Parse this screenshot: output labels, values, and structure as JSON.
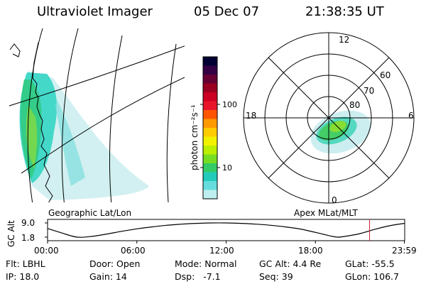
{
  "header": {
    "title": "Ultraviolet Imager",
    "date": "05 Dec 07",
    "time": "21:38:35 UT"
  },
  "colorbar": {
    "label": "photon cm⁻²s⁻¹",
    "ticks": [
      {
        "value": 100,
        "label": "100"
      },
      {
        "value": 10,
        "label": "10"
      }
    ],
    "colors": [
      "#000033",
      "#330044",
      "#660033",
      "#990022",
      "#cc0022",
      "#e8152a",
      "#ff5500",
      "#ff9900",
      "#ffcc00",
      "#f2f200",
      "#bbee00",
      "#77dd22",
      "#33cc66",
      "#22ccbb",
      "#66dddd",
      "#bfeeee"
    ]
  },
  "polar": {
    "hour_labels": [
      "12",
      "18",
      "6",
      "0"
    ],
    "lat_labels": [
      "60",
      "70",
      "80"
    ]
  },
  "panels": {
    "left_label": "Geographic Lat/Lon",
    "right_label": "Apex MLat/MLT"
  },
  "altitude_plot": {
    "ylabel": "GC Alt",
    "y_ticks": [
      "9.0",
      "1.8"
    ],
    "x_ticks": [
      "00:00",
      "06:00",
      "12:00",
      "18:00",
      "23:59"
    ]
  },
  "chart_data": {
    "type": "line",
    "title": "",
    "xlabel": "",
    "ylabel": "GC Alt",
    "xlim": [
      0,
      24
    ],
    "ylim": [
      1.8,
      9.0
    ],
    "x": [
      0,
      1,
      2,
      3,
      4,
      5,
      6,
      7,
      8,
      9,
      10,
      11,
      12,
      13,
      14,
      15,
      16,
      17,
      18,
      19,
      19.5,
      20,
      21,
      22,
      23,
      23.98
    ],
    "series": [
      {
        "values": [
          6.2,
          3.8,
          1.8,
          2.2,
          3.4,
          4.8,
          6.0,
          7.0,
          7.8,
          8.4,
          8.8,
          9.0,
          9.0,
          8.8,
          8.4,
          7.8,
          7.0,
          5.9,
          4.2,
          2.4,
          1.8,
          2.2,
          3.6,
          5.8,
          7.6,
          8.8
        ]
      }
    ],
    "marker_x": 21.64
  },
  "info": {
    "filter": "Flt: LBHL",
    "ip": "IP: 18.0",
    "door": "Door: Open",
    "gain": "Gain: 14",
    "mode": "Mode: Normal",
    "dsp": "Dsp:   -7.1",
    "gc_alt": "GC Alt: 4.4 Re",
    "seq": "Seq: 39",
    "glat": "GLat: -55.5",
    "glon": "GLon: 106.7"
  }
}
